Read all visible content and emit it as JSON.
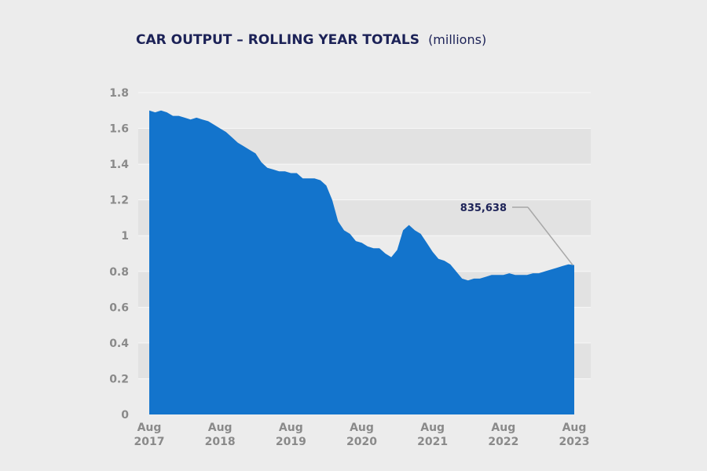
{
  "chart_data": {
    "type": "area",
    "title": "CAR OUTPUT – ROLLING YEAR TOTALS",
    "subtitle": "(millions)",
    "ylim": [
      0,
      1.8
    ],
    "yticks": [
      "0",
      "0.2",
      "0.4",
      "0.6",
      "0.8",
      "1",
      "1.2",
      "1.4",
      "1.6",
      "1.8"
    ],
    "xticks": [
      {
        "month": "Aug",
        "year": "2017",
        "index": 0
      },
      {
        "month": "Aug",
        "year": "2018",
        "index": 12
      },
      {
        "month": "Aug",
        "year": "2019",
        "index": 24
      },
      {
        "month": "Aug",
        "year": "2020",
        "index": 36
      },
      {
        "month": "Aug",
        "year": "2021",
        "index": 48
      },
      {
        "month": "Aug",
        "year": "2022",
        "index": 60
      },
      {
        "month": "Aug",
        "year": "2023",
        "index": 72
      }
    ],
    "x_range": [
      "Aug 2017",
      "Aug 2023"
    ],
    "grid": "alternating horizontal bands",
    "color": "#1374cc",
    "values": [
      1.7,
      1.69,
      1.7,
      1.69,
      1.67,
      1.67,
      1.66,
      1.65,
      1.66,
      1.65,
      1.64,
      1.62,
      1.6,
      1.58,
      1.55,
      1.52,
      1.5,
      1.48,
      1.46,
      1.41,
      1.38,
      1.37,
      1.36,
      1.36,
      1.35,
      1.35,
      1.32,
      1.32,
      1.32,
      1.31,
      1.28,
      1.2,
      1.08,
      1.03,
      1.01,
      0.97,
      0.96,
      0.94,
      0.93,
      0.93,
      0.9,
      0.88,
      0.92,
      1.03,
      1.06,
      1.03,
      1.01,
      0.96,
      0.91,
      0.87,
      0.86,
      0.84,
      0.8,
      0.76,
      0.75,
      0.76,
      0.76,
      0.77,
      0.78,
      0.78,
      0.78,
      0.79,
      0.78,
      0.78,
      0.78,
      0.79,
      0.79,
      0.8,
      0.81,
      0.82,
      0.83,
      0.84,
      0.836
    ],
    "annotation": {
      "text": "835,638",
      "index": 72
    }
  }
}
